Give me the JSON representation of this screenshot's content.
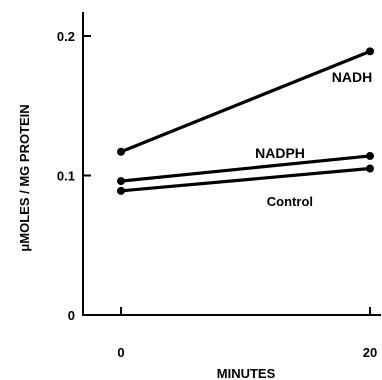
{
  "chart_data": {
    "type": "line",
    "xlabel": "MINUTES",
    "ylabel": "μMOLES / MG PROTEIN",
    "x": [
      0,
      20
    ],
    "xlim": [
      -3,
      21
    ],
    "ylim": [
      0,
      0.22
    ],
    "xticks": [
      {
        "value": 0,
        "label": "0"
      },
      {
        "value": 20,
        "label": "20"
      }
    ],
    "yticks": [
      {
        "value": 0,
        "label": "0"
      },
      {
        "value": 0.1,
        "label": "0.1"
      },
      {
        "value": 0.2,
        "label": "0.2"
      }
    ],
    "grid": false,
    "series": [
      {
        "name": "NADH",
        "values": [
          0.117,
          0.189
        ]
      },
      {
        "name": "NADPH",
        "values": [
          0.096,
          0.114
        ]
      },
      {
        "name": "Control",
        "values": [
          0.089,
          0.105
        ]
      }
    ]
  }
}
